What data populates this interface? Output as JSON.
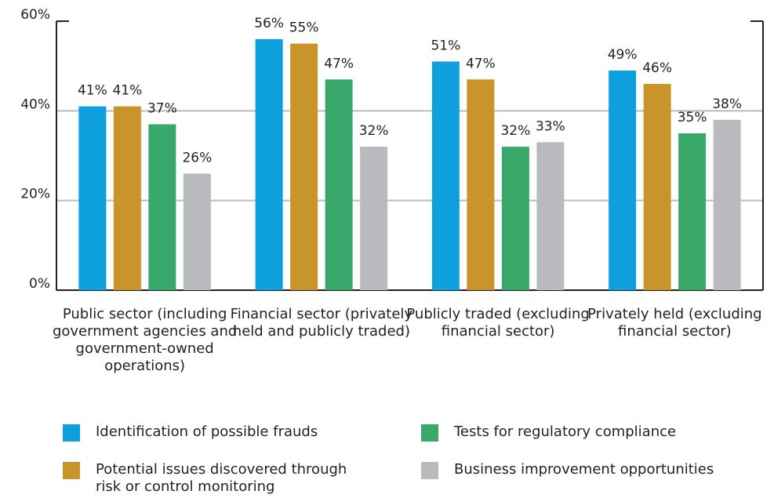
{
  "chart_data": {
    "type": "bar",
    "categories": [
      "Public sector (including government agencies and government-owned operations)",
      "Financial sector (privately held and publicly traded)",
      "Publicly traded (excluding financial sector)",
      "Privately held (excluding financial sector)"
    ],
    "series": [
      {
        "name": "Identification of possible frauds",
        "color": "#0ea0dc",
        "values": [
          41,
          56,
          51,
          49
        ],
        "value_labels": [
          "41%",
          "56%",
          "51%",
          "49%"
        ]
      },
      {
        "name": "Potential issues discovered through risk or control monitoring",
        "color": "#c9952a",
        "values": [
          41,
          55,
          47,
          46
        ],
        "value_labels": [
          "41%",
          "55%",
          "47%",
          "46%"
        ]
      },
      {
        "name": "Tests for regulatory compliance",
        "color": "#3aa86b",
        "values": [
          37,
          47,
          32,
          35
        ],
        "value_labels": [
          "37%",
          "47%",
          "32%",
          "35%"
        ]
      },
      {
        "name": "Business improvement opportunities",
        "color": "#b9babd",
        "values": [
          26,
          32,
          33,
          38
        ],
        "value_labels": [
          "26%",
          "32%",
          "33%",
          "38%"
        ]
      }
    ],
    "ylim": [
      0,
      60
    ],
    "yticks": [
      {
        "value": 0,
        "label": "0%"
      },
      {
        "value": 20,
        "label": "20%"
      },
      {
        "value": 40,
        "label": "40%"
      },
      {
        "value": 60,
        "label": "60%"
      }
    ],
    "grid": true
  }
}
